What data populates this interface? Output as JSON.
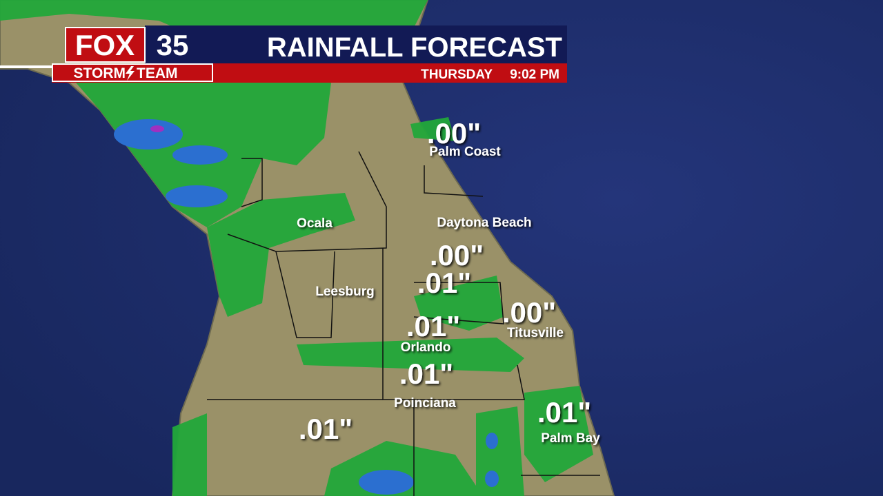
{
  "header": {
    "logo": {
      "brand": "FOX",
      "channel": "35",
      "team_left": "STORM",
      "team_right": "TEAM"
    },
    "title": "RAINFALL FORECAST",
    "day": "THURSDAY",
    "time": "9:02 PM"
  },
  "cities": [
    {
      "label": "Palm Coast"
    },
    {
      "label": "Ocala"
    },
    {
      "label": "Daytona Beach"
    },
    {
      "label": "Leesburg"
    },
    {
      "label": "Orlando"
    },
    {
      "label": "Titusville"
    },
    {
      "label": "Poinciana"
    },
    {
      "label": "Palm Bay"
    }
  ],
  "amounts": [
    {
      "label": ".00\""
    },
    {
      "label": ".00\""
    },
    {
      "label": ".01\""
    },
    {
      "label": ".00\""
    },
    {
      "label": ".01\""
    },
    {
      "label": ".01\""
    },
    {
      "label": ".01\""
    },
    {
      "label": ".01\""
    }
  ]
}
